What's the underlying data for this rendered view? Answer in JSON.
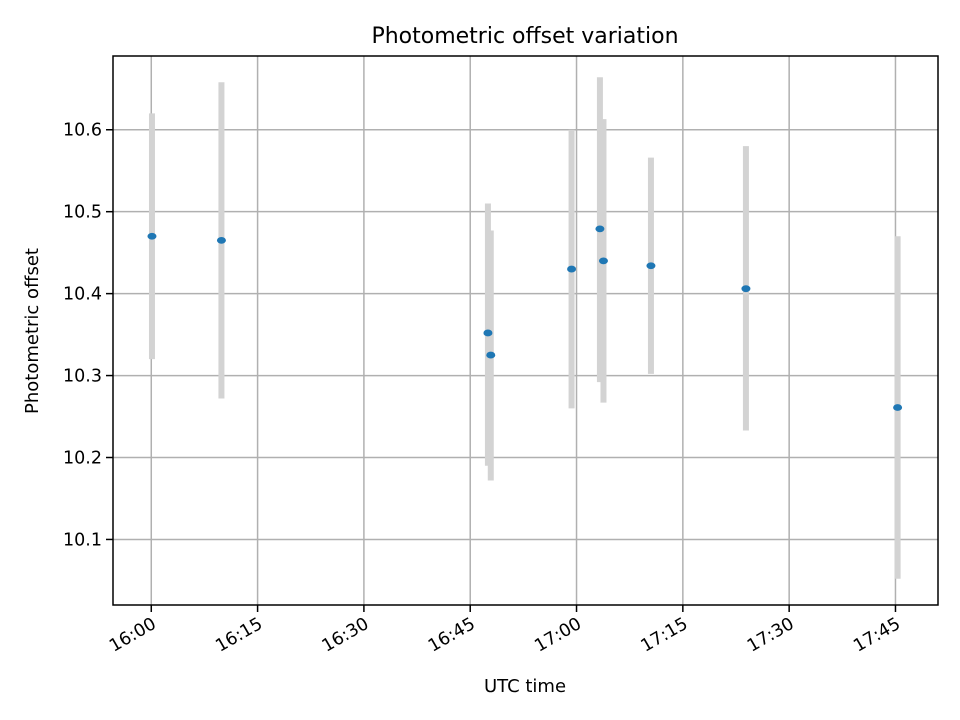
{
  "chart_data": {
    "type": "scatter",
    "title": "Photometric offset variation",
    "xlabel": "UTC time",
    "ylabel": "Photometric offset",
    "x_ticks": [
      "16:00",
      "16:15",
      "16:30",
      "16:45",
      "17:00",
      "17:15",
      "17:30",
      "17:45"
    ],
    "y_ticks": [
      10.1,
      10.2,
      10.3,
      10.4,
      10.5,
      10.6
    ],
    "xlim": [
      "15:54.6",
      "17:51.0"
    ],
    "ylim": [
      10.02,
      10.69
    ],
    "grid": true,
    "colors": {
      "points": "#1f77b4",
      "error_bars": "#d3d3d3"
    },
    "points": [
      {
        "time": "16:00.1",
        "value": 10.47,
        "err_low": 10.32,
        "err_high": 10.62
      },
      {
        "time": "16:09.9",
        "value": 10.465,
        "err_low": 10.272,
        "err_high": 10.658
      },
      {
        "time": "16:47.5",
        "value": 10.352,
        "err_low": 10.19,
        "err_high": 10.51
      },
      {
        "time": "16:47.9",
        "value": 10.325,
        "err_low": 10.172,
        "err_high": 10.477
      },
      {
        "time": "16:59.3",
        "value": 10.43,
        "err_low": 10.26,
        "err_high": 10.6
      },
      {
        "time": "17:03.3",
        "value": 10.479,
        "err_low": 10.292,
        "err_high": 10.664
      },
      {
        "time": "17:03.8",
        "value": 10.44,
        "err_low": 10.267,
        "err_high": 10.613
      },
      {
        "time": "17:10.5",
        "value": 10.434,
        "err_low": 10.302,
        "err_high": 10.566
      },
      {
        "time": "17:23.9",
        "value": 10.406,
        "err_low": 10.233,
        "err_high": 10.58
      },
      {
        "time": "17:45.3",
        "value": 10.261,
        "err_low": 10.052,
        "err_high": 10.47
      }
    ]
  }
}
